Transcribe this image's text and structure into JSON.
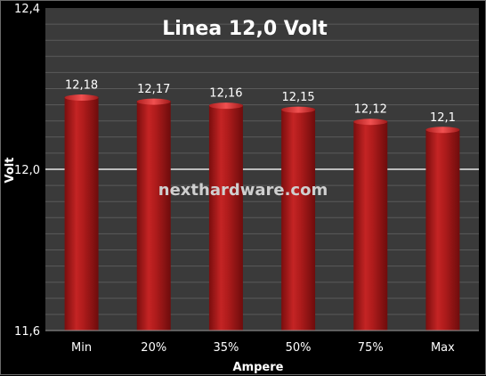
{
  "chart_data": {
    "type": "bar",
    "title": "Linea 12,0 Volt",
    "xlabel": "Ampere",
    "ylabel": "Volt",
    "categories": [
      "Min",
      "20%",
      "35%",
      "50%",
      "75%",
      "Max"
    ],
    "values": [
      12.18,
      12.17,
      12.16,
      12.15,
      12.12,
      12.1
    ],
    "value_labels": [
      "12,18",
      "12,17",
      "12,16",
      "12,15",
      "12,12",
      "12,1"
    ],
    "ylim": [
      11.6,
      12.4
    ],
    "yticks": [
      11.6,
      12.0,
      12.4
    ],
    "ytick_labels": [
      "11,6",
      "12,0",
      "12,4"
    ],
    "grid": true,
    "colors": {
      "bar": "#b01c1c",
      "bar_highlight": "#e04040",
      "plot_background": "#3a3a3a",
      "gridline": "#5a5a5a",
      "major_gridline": "#e8e8e8",
      "background": "#000000"
    }
  },
  "watermark": "nexthardware.com"
}
